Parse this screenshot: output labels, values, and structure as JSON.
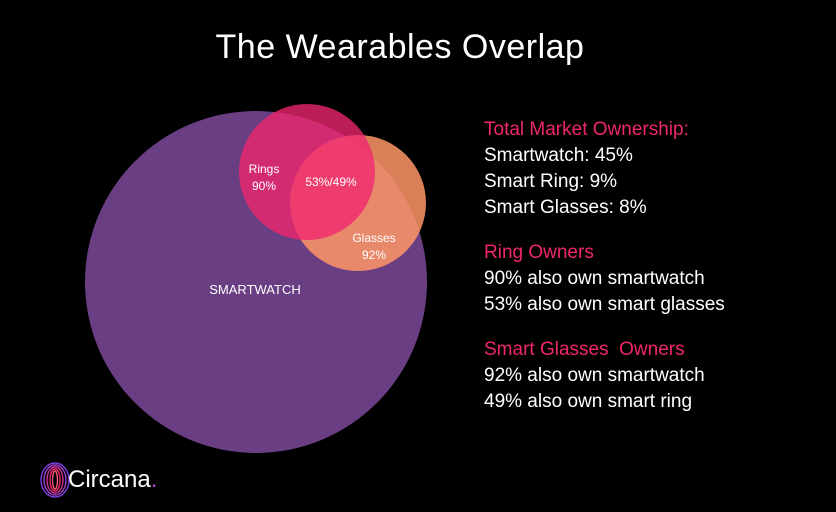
{
  "title": "The Wearables Overlap",
  "colors": {
    "background": "#000000",
    "smartwatch": "#704189",
    "rings": "#F0266E",
    "glasses": "#FF9668",
    "accent": "#F0266E"
  },
  "venn": {
    "smartwatch_label": "SMARTWATCH",
    "rings_label": "Rings",
    "rings_value": "90%",
    "overlap_label": "53%/49%",
    "glasses_label": "Glasses",
    "glasses_value": "92%"
  },
  "info": {
    "market": {
      "heading": "Total Market Ownership:",
      "lines": [
        "Smartwatch: 45%",
        "Smart Ring: 9%",
        "Smart Glasses: 8%"
      ]
    },
    "ring_owners": {
      "heading": "Ring Owners",
      "lines": [
        "90% also own smartwatch",
        "53% also own smart glasses"
      ]
    },
    "glasses_owners": {
      "heading": "Smart Glasses  Owners",
      "lines": [
        "92% also own smartwatch",
        "49% also own smart ring"
      ]
    }
  },
  "logo": {
    "text": "Circana",
    "dot": ".",
    "icon": "circana-swirl-icon"
  }
}
